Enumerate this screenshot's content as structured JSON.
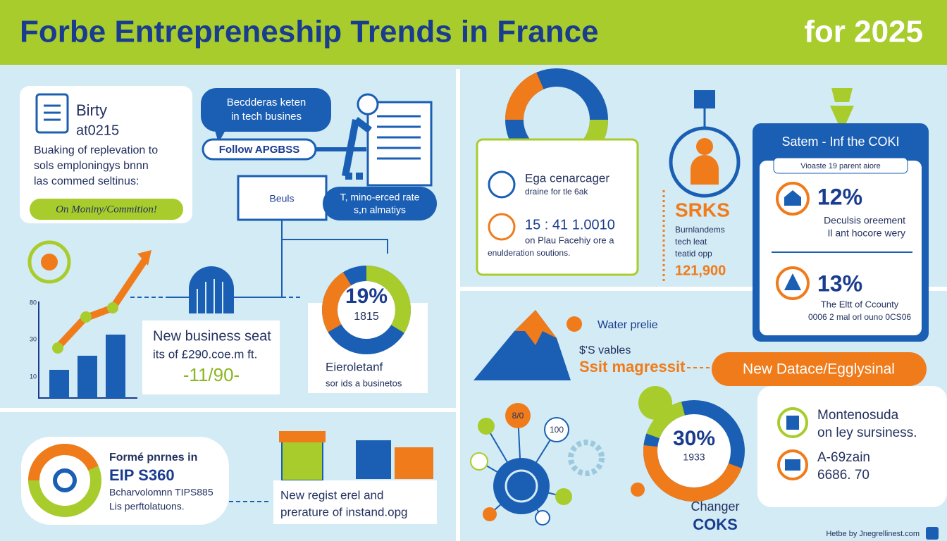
{
  "header": {
    "title": "Forbe Entrepreneship Trends in France",
    "subtitle": "for 2025"
  },
  "intro_card": {
    "title": "Birty",
    "subtitle": "at0215",
    "lines": [
      "Buaking of replevation to",
      "sols emploningys bnnn",
      "las commed seltinus:"
    ],
    "badge": "On Moniny/Commition!"
  },
  "callouts": {
    "bubble": [
      "Becdderas keten",
      "in tech busines"
    ],
    "follow": "Follow APGBSS",
    "box": "Beuls",
    "pill": [
      "T, mino-erced rate",
      "s,n almatiys"
    ]
  },
  "growth": {
    "axis_labels": [
      "80",
      "30",
      "10"
    ],
    "card": [
      "New business seat",
      "its of £290.coe.m ft.",
      "-11/90-"
    ]
  },
  "donut_left": {
    "value": "19%",
    "sub": "1815",
    "card": [
      "Eieroletanf",
      "sor ids a businetos"
    ]
  },
  "bottom_left": {
    "lines": [
      "Formé pnrnes in",
      "EIP S360",
      "Bcharvolomnn TIPS885",
      "Lis perftolatuons."
    ],
    "card": [
      "New regist erel and",
      "prerature of instand.opg"
    ]
  },
  "top_right_card": {
    "lines": [
      "Ega cenarcager",
      "draine for tle 6ak",
      "15 : 41 1.0010",
      "on Plau Facehiy ore a",
      "enulderation soutions."
    ]
  },
  "srks": {
    "title": "SRKS",
    "lines": [
      "Burnlandems",
      "tech leat",
      "teatid opp"
    ],
    "value": "121,900"
  },
  "stats_card": {
    "title": "Satem - Inf the COKI",
    "pill": "Vioaste 19 parent aiore",
    "items": [
      {
        "value": "12%",
        "lines": [
          "Deculsis oreement",
          "Il ant hocore wery"
        ]
      },
      {
        "value": "13%",
        "lines": [
          "The Eltt of Ccounty",
          "0006 2 mal orl ouno 0CS06"
        ]
      }
    ]
  },
  "lower_right": {
    "water": "Water prelie",
    "vables": "$'S vables",
    "magressit": "Ssit magressit",
    "banner": "New Datace/Egglysinal",
    "card": [
      "Montenosuda",
      "on ley sursiness.",
      "A-69zain",
      "6686. 70"
    ],
    "donut_value": "30%",
    "donut_sub": "1933",
    "changer": "Changer",
    "coks": "COKS",
    "nodes": [
      "8/0",
      "100"
    ]
  },
  "footer": "Hetbe by Jnegrellinest.com"
}
